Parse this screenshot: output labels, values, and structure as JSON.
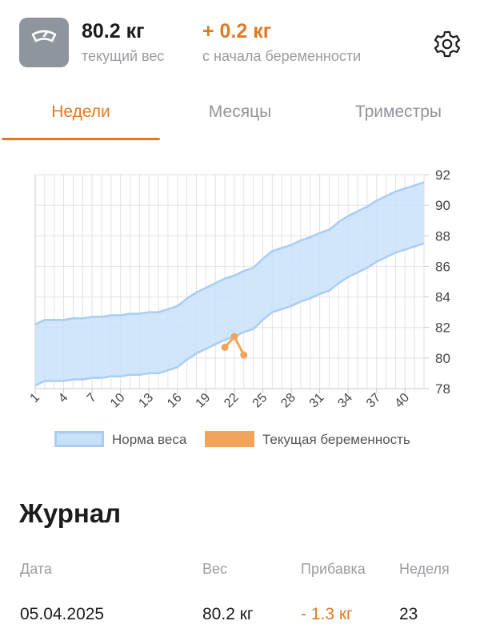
{
  "header": {
    "weight_value": "80.2 кг",
    "weight_caption": "текущий вес",
    "gain_value": "+ 0.2 кг",
    "gain_caption": "с начала беременности",
    "scale_icon": "scale-icon",
    "settings_icon": "gear-icon"
  },
  "tabs": [
    {
      "label": "Недели",
      "active": true
    },
    {
      "label": "Месяцы",
      "active": false
    },
    {
      "label": "Триместры",
      "active": false
    }
  ],
  "colors": {
    "accent": "#e07a24",
    "norm_fill": "#c9e0fa",
    "norm_stroke": "#a9cdf5",
    "current": "#f0a55a"
  },
  "chart_data": {
    "type": "area",
    "x_ticks": [
      1,
      4,
      7,
      10,
      13,
      16,
      19,
      22,
      25,
      28,
      31,
      34,
      37,
      40
    ],
    "y_ticks": [
      78,
      80,
      82,
      84,
      86,
      88,
      90,
      92
    ],
    "xlim": [
      1,
      42
    ],
    "ylim": [
      78,
      92
    ],
    "grid": true,
    "y_axis_position": "right",
    "legend_position": "bottom",
    "series": [
      {
        "name": "Норма веса",
        "kind": "band",
        "x": [
          1,
          2,
          3,
          4,
          5,
          6,
          7,
          8,
          9,
          10,
          11,
          12,
          13,
          14,
          15,
          16,
          17,
          18,
          19,
          20,
          21,
          22,
          23,
          24,
          25,
          26,
          27,
          28,
          29,
          30,
          31,
          32,
          33,
          34,
          35,
          36,
          37,
          38,
          39,
          40,
          41,
          42
        ],
        "upper": [
          82.2,
          82.5,
          82.5,
          82.5,
          82.6,
          82.6,
          82.7,
          82.7,
          82.8,
          82.8,
          82.9,
          82.9,
          83.0,
          83.0,
          83.2,
          83.4,
          83.9,
          84.3,
          84.6,
          84.9,
          85.2,
          85.4,
          85.7,
          85.9,
          86.5,
          87.0,
          87.2,
          87.4,
          87.7,
          87.9,
          88.2,
          88.4,
          88.9,
          89.3,
          89.6,
          89.9,
          90.3,
          90.6,
          90.9,
          91.1,
          91.3,
          91.5
        ],
        "lower": [
          78.2,
          78.5,
          78.5,
          78.5,
          78.6,
          78.6,
          78.7,
          78.7,
          78.8,
          78.8,
          78.9,
          78.9,
          79.0,
          79.0,
          79.2,
          79.4,
          79.9,
          80.3,
          80.6,
          80.9,
          81.2,
          81.4,
          81.7,
          81.9,
          82.5,
          83.0,
          83.2,
          83.4,
          83.7,
          83.9,
          84.2,
          84.4,
          84.9,
          85.3,
          85.6,
          85.9,
          86.3,
          86.6,
          86.9,
          87.1,
          87.3,
          87.5
        ]
      },
      {
        "name": "Текущая беременность",
        "kind": "line",
        "x": [
          21,
          22,
          23
        ],
        "values": [
          80.7,
          81.4,
          80.2
        ]
      }
    ]
  },
  "journal": {
    "title": "Журнал",
    "columns": [
      "Дата",
      "Вес",
      "Прибавка",
      "Неделя"
    ],
    "rows": [
      {
        "date": "05.04.2025",
        "weight": "80.2 кг",
        "gain": "- 1.3 кг",
        "week": "23"
      }
    ]
  }
}
